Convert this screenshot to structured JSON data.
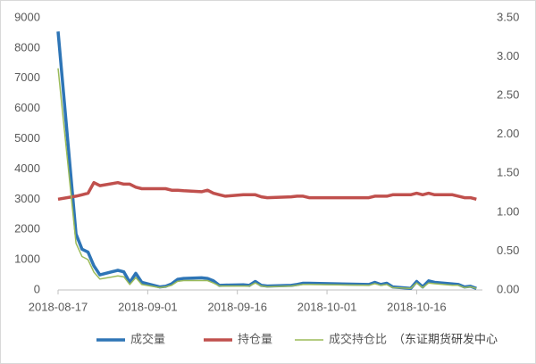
{
  "chart_data": {
    "type": "line",
    "x": [
      "2018-08-17",
      "2018-08-20",
      "2018-08-21",
      "2018-08-22",
      "2018-08-23",
      "2018-08-24",
      "2018-08-27",
      "2018-08-28",
      "2018-08-29",
      "2018-08-30",
      "2018-08-31",
      "2018-09-03",
      "2018-09-04",
      "2018-09-05",
      "2018-09-06",
      "2018-09-07",
      "2018-09-10",
      "2018-09-11",
      "2018-09-12",
      "2018-09-13",
      "2018-09-14",
      "2018-09-17",
      "2018-09-18",
      "2018-09-19",
      "2018-09-20",
      "2018-09-21",
      "2018-09-25",
      "2018-09-26",
      "2018-09-27",
      "2018-09-28",
      "2018-10-08",
      "2018-10-09",
      "2018-10-10",
      "2018-10-11",
      "2018-10-12",
      "2018-10-15",
      "2018-10-16",
      "2018-10-17",
      "2018-10-18",
      "2018-10-19",
      "2018-10-22",
      "2018-10-23",
      "2018-10-24",
      "2018-10-25",
      "2018-10-26"
    ],
    "series": [
      {
        "name": "成交量",
        "color": "#2e75b6",
        "axis": "y",
        "values": [
          8550,
          1850,
          1350,
          1250,
          800,
          500,
          650,
          600,
          250,
          550,
          250,
          100,
          120,
          200,
          350,
          380,
          400,
          380,
          300,
          150,
          160,
          170,
          150,
          280,
          150,
          130,
          150,
          180,
          220,
          220,
          180,
          250,
          180,
          220,
          100,
          50,
          280,
          100,
          300,
          250,
          200,
          180,
          100,
          120,
          50
        ]
      },
      {
        "name": "持仓量",
        "color": "#c0504d",
        "axis": "y",
        "values": [
          3000,
          3100,
          3150,
          3200,
          3550,
          3450,
          3550,
          3500,
          3500,
          3400,
          3350,
          3350,
          3350,
          3300,
          3300,
          3280,
          3250,
          3300,
          3200,
          3150,
          3100,
          3150,
          3150,
          3150,
          3080,
          3050,
          3080,
          3100,
          3100,
          3050,
          3050,
          3100,
          3100,
          3100,
          3150,
          3150,
          3200,
          3150,
          3200,
          3150,
          3150,
          3100,
          3050,
          3050,
          3000
        ]
      },
      {
        "name": "成交持仓比",
        "color": "#9bbb59",
        "axis": "y2",
        "values": [
          2.85,
          0.6,
          0.43,
          0.39,
          0.23,
          0.14,
          0.18,
          0.17,
          0.07,
          0.16,
          0.07,
          0.03,
          0.04,
          0.06,
          0.11,
          0.12,
          0.12,
          0.12,
          0.09,
          0.05,
          0.05,
          0.05,
          0.05,
          0.09,
          0.05,
          0.04,
          0.05,
          0.06,
          0.07,
          0.07,
          0.06,
          0.08,
          0.06,
          0.07,
          0.03,
          0.02,
          0.09,
          0.03,
          0.09,
          0.08,
          0.06,
          0.06,
          0.03,
          0.04,
          0.02
        ]
      }
    ],
    "xlim": [
      "2018-08-17",
      "2018-10-27"
    ],
    "xticks": [
      "2018-08-17",
      "2018-09-01",
      "2018-09-16",
      "2018-10-01",
      "2018-10-16"
    ],
    "ylim": [
      0,
      9000
    ],
    "yticks": [
      0,
      1000,
      2000,
      3000,
      4000,
      5000,
      6000,
      7000,
      8000,
      9000
    ],
    "y2lim": [
      0,
      3.5
    ],
    "y2ticks": [
      {
        "value": 0,
        "label": "0.00"
      },
      {
        "value": 0.5,
        "label": "0.50"
      },
      {
        "value": 1,
        "label": "1.00"
      },
      {
        "value": 1.5,
        "label": "1.50"
      },
      {
        "value": 2,
        "label": "2.00"
      },
      {
        "value": 2.5,
        "label": "2.50"
      },
      {
        "value": 3,
        "label": "3.00"
      },
      {
        "value": 3.5,
        "label": "3.50"
      }
    ],
    "grid": false,
    "legend": "bottom",
    "watermark": "（东证期货研发中心"
  }
}
